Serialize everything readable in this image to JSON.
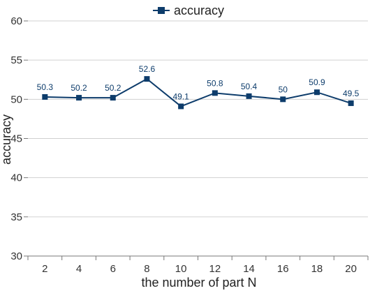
{
  "chart_data": {
    "type": "line",
    "title": "",
    "xlabel": "the number of part N",
    "ylabel": "accuracy",
    "categories": [
      "2",
      "4",
      "6",
      "8",
      "10",
      "12",
      "14",
      "16",
      "18",
      "20"
    ],
    "series": [
      {
        "name": "accuracy",
        "values": [
          50.3,
          50.2,
          50.2,
          52.6,
          49.1,
          50.8,
          50.4,
          50,
          50.9,
          49.5
        ],
        "labels": [
          "50.3",
          "50.2",
          "50.2",
          "52.6",
          "49.1",
          "50.8",
          "50.4",
          "50",
          "50.9",
          "49.5"
        ],
        "color": "#0d3c6b",
        "marker": "square"
      }
    ],
    "ylim": [
      30,
      60
    ],
    "yticks": [
      "30",
      "35",
      "40",
      "45",
      "50",
      "55",
      "60"
    ],
    "grid": "horizontal",
    "legend": "top-center"
  }
}
